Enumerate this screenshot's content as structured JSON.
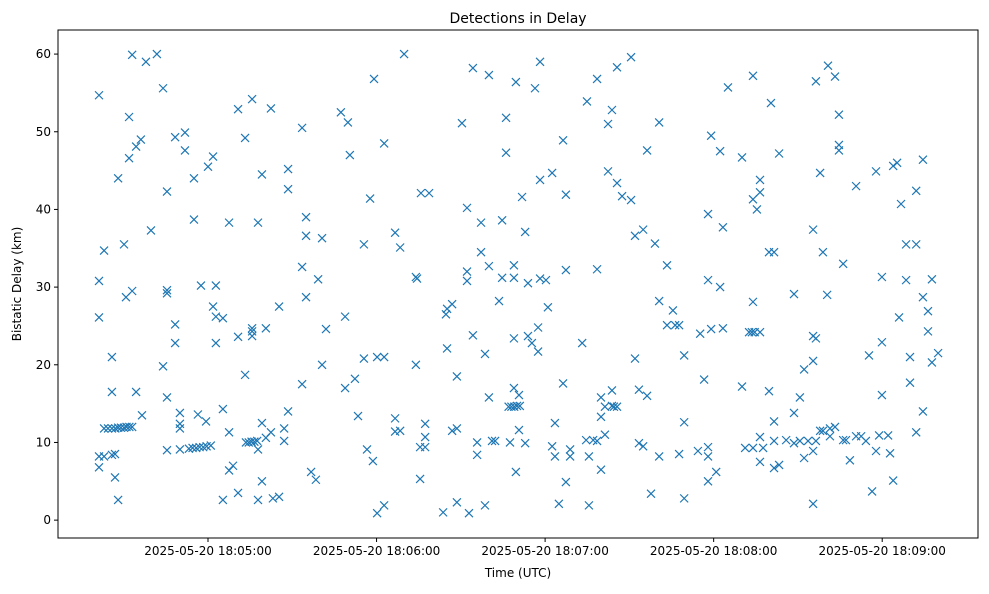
{
  "chart_data": {
    "type": "scatter",
    "title": "Detections in Delay",
    "xlabel": "Time (UTC)",
    "ylabel": "Bistatic Delay (km)",
    "x_units": "seconds after 2025-05-20 18:04:00 UTC",
    "xlim": [
      6.6,
      334.1
    ],
    "ylim": [
      -2.3,
      63.1
    ],
    "grid": false,
    "marker": "x",
    "color": "#1f77b4",
    "xticks": [
      {
        "value": 60,
        "label": "2025-05-20 18:05:00"
      },
      {
        "value": 120,
        "label": "2025-05-20 18:06:00"
      },
      {
        "value": 180,
        "label": "2025-05-20 18:07:00"
      },
      {
        "value": 240,
        "label": "2025-05-20 18:08:00"
      },
      {
        "value": 300,
        "label": "2025-05-20 18:09:00"
      }
    ],
    "yticks": [
      {
        "value": 0,
        "label": "0"
      },
      {
        "value": 10,
        "label": "10"
      },
      {
        "value": 20,
        "label": "20"
      },
      {
        "value": 30,
        "label": "30"
      },
      {
        "value": 40,
        "label": "40"
      },
      {
        "value": 50,
        "label": "50"
      },
      {
        "value": 60,
        "label": "60"
      }
    ],
    "points": [
      [
        21.2,
        6.8
      ],
      [
        21.2,
        8.2
      ],
      [
        21.2,
        54.7
      ],
      [
        21.2,
        30.8
      ],
      [
        21.2,
        26.1
      ],
      [
        23.0,
        34.7
      ],
      [
        23.0,
        11.8
      ],
      [
        23.0,
        8.2
      ],
      [
        24.4,
        11.8
      ],
      [
        25.8,
        11.8
      ],
      [
        27.0,
        11.8
      ],
      [
        28.0,
        11.9
      ],
      [
        29.0,
        11.9
      ],
      [
        30.1,
        11.9
      ],
      [
        31.0,
        12.0
      ],
      [
        32.0,
        12.0
      ],
      [
        33.0,
        12.0
      ],
      [
        25.8,
        21.0
      ],
      [
        25.8,
        8.4
      ],
      [
        25.8,
        16.5
      ],
      [
        26.9,
        5.5
      ],
      [
        26.9,
        8.5
      ],
      [
        28.0,
        2.6
      ],
      [
        28.0,
        44.0
      ],
      [
        30.1,
        35.5
      ],
      [
        30.8,
        28.7
      ],
      [
        31.9,
        51.9
      ],
      [
        31.9,
        46.6
      ],
      [
        33.0,
        29.5
      ],
      [
        33.0,
        59.9
      ],
      [
        34.4,
        48.1
      ],
      [
        34.4,
        16.5
      ],
      [
        36.1,
        49.0
      ],
      [
        36.5,
        13.5
      ],
      [
        37.9,
        59.0
      ],
      [
        39.7,
        37.3
      ],
      [
        41.8,
        60.0
      ],
      [
        44.0,
        19.8
      ],
      [
        44.0,
        55.6
      ],
      [
        45.4,
        9.0
      ],
      [
        45.4,
        15.8
      ],
      [
        45.4,
        42.3
      ],
      [
        45.4,
        29.2
      ],
      [
        45.4,
        29.6
      ],
      [
        48.3,
        25.2
      ],
      [
        48.3,
        22.8
      ],
      [
        48.3,
        49.3
      ],
      [
        50.0,
        13.8
      ],
      [
        50.0,
        12.4
      ],
      [
        50.0,
        11.8
      ],
      [
        50.0,
        9.1
      ],
      [
        51.8,
        49.9
      ],
      [
        51.8,
        47.6
      ],
      [
        53.2,
        9.2
      ],
      [
        54.5,
        9.3
      ],
      [
        55.8,
        9.3
      ],
      [
        57.0,
        9.4
      ],
      [
        58.3,
        9.4
      ],
      [
        59.5,
        9.5
      ],
      [
        61.0,
        9.6
      ],
      [
        55.0,
        38.7
      ],
      [
        55.0,
        44.0
      ],
      [
        56.4,
        13.6
      ],
      [
        57.5,
        30.2
      ],
      [
        59.3,
        12.7
      ],
      [
        60.0,
        45.5
      ],
      [
        61.8,
        27.5
      ],
      [
        61.8,
        46.8
      ],
      [
        62.8,
        30.2
      ],
      [
        62.8,
        26.2
      ],
      [
        62.8,
        22.8
      ],
      [
        65.3,
        2.6
      ],
      [
        65.3,
        14.3
      ],
      [
        65.3,
        26.0
      ],
      [
        67.5,
        38.3
      ],
      [
        67.5,
        11.3
      ],
      [
        67.5,
        6.4
      ],
      [
        68.9,
        7.0
      ],
      [
        70.7,
        52.9
      ],
      [
        70.7,
        3.5
      ],
      [
        70.7,
        23.6
      ],
      [
        73.2,
        18.7
      ],
      [
        73.2,
        49.2
      ],
      [
        73.5,
        10.0
      ],
      [
        74.5,
        10.0
      ],
      [
        75.5,
        10.1
      ],
      [
        76.5,
        10.1
      ],
      [
        77.5,
        10.2
      ],
      [
        75.7,
        54.2
      ],
      [
        75.7,
        24.7
      ],
      [
        75.7,
        24.3
      ],
      [
        75.7,
        23.7
      ],
      [
        77.8,
        2.6
      ],
      [
        77.8,
        9.1
      ],
      [
        77.8,
        38.3
      ],
      [
        79.2,
        44.5
      ],
      [
        79.2,
        12.5
      ],
      [
        79.2,
        5.0
      ],
      [
        80.6,
        10.6
      ],
      [
        80.6,
        24.7
      ],
      [
        82.4,
        53.0
      ],
      [
        82.4,
        11.3
      ],
      [
        83.1,
        2.8
      ],
      [
        85.3,
        3.0
      ],
      [
        85.3,
        27.5
      ],
      [
        87.1,
        11.8
      ],
      [
        87.1,
        10.2
      ],
      [
        88.5,
        45.2
      ],
      [
        88.5,
        42.6
      ],
      [
        88.5,
        14.0
      ],
      [
        93.5,
        17.5
      ],
      [
        93.5,
        32.6
      ],
      [
        93.5,
        50.5
      ],
      [
        94.9,
        28.7
      ],
      [
        94.9,
        36.6
      ],
      [
        94.9,
        39.0
      ],
      [
        96.7,
        6.2
      ],
      [
        98.4,
        5.2
      ],
      [
        99.2,
        31.0
      ],
      [
        100.6,
        36.3
      ],
      [
        100.6,
        20.0
      ],
      [
        102.0,
        24.6
      ],
      [
        107.3,
        52.5
      ],
      [
        108.8,
        17.0
      ],
      [
        108.8,
        26.2
      ],
      [
        109.8,
        51.2
      ],
      [
        110.5,
        47.0
      ],
      [
        112.3,
        18.2
      ],
      [
        113.4,
        13.4
      ],
      [
        115.5,
        35.5
      ],
      [
        115.5,
        20.8
      ],
      [
        116.6,
        9.1
      ],
      [
        117.7,
        41.4
      ],
      [
        118.7,
        7.6
      ],
      [
        119.1,
        56.8
      ],
      [
        120.2,
        21.0
      ],
      [
        120.2,
        0.9
      ],
      [
        122.7,
        1.9
      ],
      [
        122.7,
        21.0
      ],
      [
        122.7,
        48.5
      ],
      [
        126.6,
        13.1
      ],
      [
        126.6,
        37.0
      ],
      [
        126.6,
        11.4
      ],
      [
        128.4,
        35.1
      ],
      [
        128.4,
        11.5
      ],
      [
        129.8,
        60.0
      ],
      [
        134.0,
        20.0
      ],
      [
        134.0,
        31.3
      ],
      [
        134.4,
        31.1
      ],
      [
        135.5,
        9.4
      ],
      [
        135.5,
        5.3
      ],
      [
        135.8,
        42.1
      ],
      [
        137.3,
        12.4
      ],
      [
        137.3,
        10.7
      ],
      [
        137.3,
        9.4
      ],
      [
        138.7,
        42.1
      ],
      [
        143.7,
        1.0
      ],
      [
        144.7,
        26.5
      ],
      [
        145.1,
        27.2
      ],
      [
        145.1,
        22.1
      ],
      [
        146.9,
        27.8
      ],
      [
        146.9,
        11.5
      ],
      [
        148.6,
        2.3
      ],
      [
        148.6,
        18.5
      ],
      [
        148.6,
        11.8
      ],
      [
        150.4,
        51.1
      ],
      [
        152.2,
        40.2
      ],
      [
        152.2,
        32.0
      ],
      [
        152.2,
        30.8
      ],
      [
        152.9,
        0.9
      ],
      [
        154.3,
        58.2
      ],
      [
        154.3,
        23.8
      ],
      [
        155.8,
        10.0
      ],
      [
        155.8,
        8.4
      ],
      [
        157.2,
        38.3
      ],
      [
        157.2,
        34.5
      ],
      [
        158.6,
        1.9
      ],
      [
        158.6,
        21.4
      ],
      [
        160.0,
        57.3
      ],
      [
        160.0,
        32.7
      ],
      [
        160.0,
        15.8
      ],
      [
        161.1,
        10.2
      ],
      [
        162.2,
        10.2
      ],
      [
        163.6,
        28.2
      ],
      [
        164.7,
        38.6
      ],
      [
        164.7,
        31.2
      ],
      [
        166.1,
        51.8
      ],
      [
        166.1,
        47.3
      ],
      [
        167.0,
        14.6
      ],
      [
        168.0,
        14.6
      ],
      [
        169.0,
        14.6
      ],
      [
        170.0,
        14.7
      ],
      [
        171.0,
        14.7
      ],
      [
        167.5,
        10.0
      ],
      [
        168.9,
        17.0
      ],
      [
        168.9,
        23.4
      ],
      [
        168.9,
        32.8
      ],
      [
        168.9,
        31.2
      ],
      [
        169.6,
        56.4
      ],
      [
        169.6,
        6.2
      ],
      [
        170.7,
        11.6
      ],
      [
        170.7,
        16.1
      ],
      [
        171.8,
        41.6
      ],
      [
        172.9,
        37.1
      ],
      [
        172.9,
        9.9
      ],
      [
        173.9,
        30.5
      ],
      [
        173.9,
        23.7
      ],
      [
        175.3,
        22.8
      ],
      [
        176.4,
        55.6
      ],
      [
        177.5,
        21.7
      ],
      [
        177.5,
        24.8
      ],
      [
        178.2,
        59.0
      ],
      [
        178.2,
        43.8
      ],
      [
        178.2,
        31.1
      ],
      [
        180.3,
        30.9
      ],
      [
        181.0,
        27.4
      ],
      [
        182.5,
        9.5
      ],
      [
        182.5,
        44.7
      ],
      [
        183.5,
        12.5
      ],
      [
        183.5,
        8.2
      ],
      [
        184.9,
        2.1
      ],
      [
        186.4,
        17.6
      ],
      [
        186.4,
        48.9
      ],
      [
        187.4,
        41.9
      ],
      [
        187.4,
        4.9
      ],
      [
        187.4,
        32.2
      ],
      [
        188.9,
        8.2
      ],
      [
        188.9,
        9.1
      ],
      [
        193.2,
        22.8
      ],
      [
        194.6,
        10.3
      ],
      [
        194.9,
        53.9
      ],
      [
        195.6,
        1.9
      ],
      [
        195.6,
        8.2
      ],
      [
        197.1,
        10.3
      ],
      [
        198.5,
        10.2
      ],
      [
        198.5,
        32.3
      ],
      [
        198.5,
        56.8
      ],
      [
        199.9,
        15.8
      ],
      [
        199.9,
        13.3
      ],
      [
        199.9,
        6.5
      ],
      [
        201.3,
        11.0
      ],
      [
        201.3,
        14.6
      ],
      [
        202.4,
        44.9
      ],
      [
        202.4,
        51.0
      ],
      [
        203.8,
        52.8
      ],
      [
        203.8,
        14.7
      ],
      [
        203.8,
        16.7
      ],
      [
        204.5,
        14.6
      ],
      [
        205.6,
        14.6
      ],
      [
        205.6,
        43.4
      ],
      [
        205.6,
        58.3
      ],
      [
        207.4,
        41.7
      ],
      [
        210.6,
        41.2
      ],
      [
        210.6,
        59.6
      ],
      [
        212.0,
        36.6
      ],
      [
        212.0,
        20.8
      ],
      [
        213.4,
        16.8
      ],
      [
        213.4,
        9.9
      ],
      [
        214.9,
        37.4
      ],
      [
        214.9,
        9.5
      ],
      [
        216.3,
        47.6
      ],
      [
        216.3,
        16.0
      ],
      [
        217.7,
        3.4
      ],
      [
        219.1,
        35.6
      ],
      [
        220.6,
        51.2
      ],
      [
        220.6,
        28.2
      ],
      [
        220.6,
        8.2
      ],
      [
        223.4,
        32.8
      ],
      [
        223.4,
        25.1
      ],
      [
        225.5,
        27.0
      ],
      [
        226.3,
        25.1
      ],
      [
        227.7,
        8.5
      ],
      [
        227.7,
        25.1
      ],
      [
        229.5,
        12.6
      ],
      [
        229.5,
        2.8
      ],
      [
        229.5,
        21.2
      ],
      [
        234.4,
        8.9
      ],
      [
        235.2,
        24.0
      ],
      [
        236.6,
        18.1
      ],
      [
        238.0,
        30.9
      ],
      [
        238.0,
        39.4
      ],
      [
        238.0,
        5.0
      ],
      [
        238.0,
        8.2
      ],
      [
        238.0,
        9.4
      ],
      [
        239.1,
        49.5
      ],
      [
        239.1,
        24.6
      ],
      [
        240.9,
        6.2
      ],
      [
        242.3,
        30.0
      ],
      [
        242.3,
        47.5
      ],
      [
        243.3,
        24.7
      ],
      [
        243.3,
        37.7
      ],
      [
        245.1,
        55.7
      ],
      [
        250.1,
        17.2
      ],
      [
        250.1,
        46.7
      ],
      [
        251.2,
        9.3
      ],
      [
        252.6,
        24.2
      ],
      [
        253.6,
        24.2
      ],
      [
        254.6,
        24.2
      ],
      [
        256.5,
        24.2
      ],
      [
        254.0,
        57.2
      ],
      [
        254.0,
        28.1
      ],
      [
        254.0,
        9.3
      ],
      [
        254.0,
        41.3
      ],
      [
        255.4,
        40.0
      ],
      [
        256.5,
        43.8
      ],
      [
        256.5,
        7.5
      ],
      [
        256.5,
        10.7
      ],
      [
        256.5,
        42.2
      ],
      [
        257.6,
        9.3
      ],
      [
        259.7,
        34.5
      ],
      [
        259.7,
        16.6
      ],
      [
        260.4,
        53.7
      ],
      [
        261.5,
        34.5
      ],
      [
        261.5,
        6.7
      ],
      [
        261.5,
        10.2
      ],
      [
        261.5,
        12.7
      ],
      [
        263.3,
        7.1
      ],
      [
        263.3,
        47.2
      ],
      [
        265.8,
        10.3
      ],
      [
        268.6,
        13.8
      ],
      [
        268.6,
        29.1
      ],
      [
        268.6,
        9.9
      ],
      [
        270.7,
        10.2
      ],
      [
        270.7,
        15.8
      ],
      [
        272.2,
        19.4
      ],
      [
        272.2,
        8.0
      ],
      [
        273.6,
        10.2
      ],
      [
        275.4,
        2.1
      ],
      [
        275.4,
        8.9
      ],
      [
        275.4,
        23.7
      ],
      [
        275.4,
        37.4
      ],
      [
        275.4,
        20.5
      ],
      [
        276.4,
        56.5
      ],
      [
        276.4,
        10.2
      ],
      [
        276.4,
        23.4
      ],
      [
        277.9,
        11.5
      ],
      [
        277.9,
        44.7
      ],
      [
        278.9,
        11.5
      ],
      [
        278.9,
        34.5
      ],
      [
        280.4,
        29.0
      ],
      [
        280.7,
        58.5
      ],
      [
        281.4,
        10.8
      ],
      [
        281.4,
        11.8
      ],
      [
        283.2,
        57.1
      ],
      [
        283.2,
        12.0
      ],
      [
        284.6,
        52.2
      ],
      [
        284.6,
        48.3
      ],
      [
        284.6,
        47.6
      ],
      [
        286.1,
        33.0
      ],
      [
        286.1,
        10.3
      ],
      [
        287.1,
        10.3
      ],
      [
        288.5,
        7.7
      ],
      [
        290.7,
        43.0
      ],
      [
        290.7,
        10.8
      ],
      [
        292.5,
        10.8
      ],
      [
        294.2,
        10.2
      ],
      [
        295.3,
        21.2
      ],
      [
        296.4,
        3.7
      ],
      [
        297.8,
        8.9
      ],
      [
        297.8,
        44.9
      ],
      [
        298.9,
        10.9
      ],
      [
        299.9,
        31.3
      ],
      [
        299.9,
        16.1
      ],
      [
        299.9,
        22.9
      ],
      [
        302.1,
        10.9
      ],
      [
        302.8,
        8.6
      ],
      [
        303.9,
        45.6
      ],
      [
        303.9,
        5.1
      ],
      [
        305.3,
        46.0
      ],
      [
        306.0,
        26.1
      ],
      [
        306.7,
        40.7
      ],
      [
        308.5,
        35.5
      ],
      [
        308.5,
        30.9
      ],
      [
        309.9,
        17.7
      ],
      [
        309.9,
        21.0
      ],
      [
        312.1,
        35.5
      ],
      [
        312.1,
        11.3
      ],
      [
        312.1,
        42.4
      ],
      [
        314.5,
        14.0
      ],
      [
        314.5,
        46.4
      ],
      [
        314.5,
        28.7
      ],
      [
        316.3,
        24.3
      ],
      [
        316.3,
        26.9
      ],
      [
        317.7,
        31.0
      ],
      [
        317.7,
        20.3
      ],
      [
        319.9,
        21.5
      ]
    ]
  }
}
